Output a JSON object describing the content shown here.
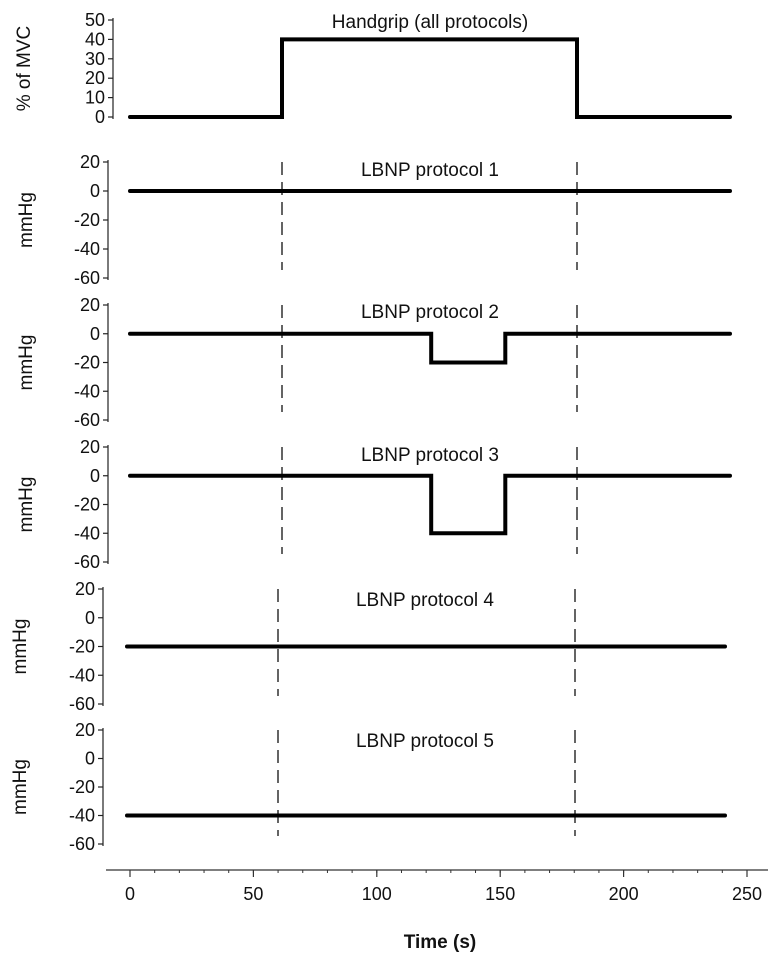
{
  "chart_data": {
    "type": "line",
    "x_axis": {
      "label": "Time (s)",
      "ticks": [
        0,
        50,
        100,
        150,
        200,
        250
      ],
      "range": [
        -5,
        255
      ]
    },
    "panels": [
      {
        "title": "Handgrip (all protocols)",
        "ylabel": "% of MVC",
        "yticks": [
          50,
          40,
          30,
          20,
          10,
          0
        ],
        "ylim": [
          0,
          50
        ],
        "series": {
          "x": [
            0,
            62,
            62,
            182,
            182,
            243
          ],
          "y": [
            0,
            0,
            40,
            40,
            0,
            0
          ]
        },
        "dashed_markers": []
      },
      {
        "title": "LBNP protocol 1",
        "ylabel": "mmHg",
        "yticks": [
          20,
          0,
          -20,
          -40,
          -60
        ],
        "ylim": [
          -60,
          20
        ],
        "series": {
          "x": [
            0,
            243
          ],
          "y": [
            0,
            0
          ]
        },
        "dashed_markers": [
          62,
          182
        ]
      },
      {
        "title": "LBNP protocol 2",
        "ylabel": "mmHg",
        "yticks": [
          20,
          0,
          -20,
          -40,
          -60
        ],
        "ylim": [
          -60,
          20
        ],
        "series": {
          "x": [
            0,
            122,
            122,
            152,
            152,
            243
          ],
          "y": [
            0,
            0,
            -20,
            -20,
            0,
            0
          ]
        },
        "dashed_markers": [
          62,
          182
        ]
      },
      {
        "title": "LBNP protocol 3",
        "ylabel": "mmHg",
        "yticks": [
          20,
          0,
          -20,
          -40,
          -60
        ],
        "ylim": [
          -60,
          20
        ],
        "series": {
          "x": [
            0,
            122,
            122,
            152,
            152,
            243
          ],
          "y": [
            0,
            0,
            -40,
            -40,
            0,
            0
          ]
        },
        "dashed_markers": [
          62,
          182
        ]
      },
      {
        "title": "LBNP protocol 4",
        "ylabel": "mmHg",
        "yticks": [
          20,
          0,
          -20,
          -40,
          -60
        ],
        "ylim": [
          -60,
          20
        ],
        "series": {
          "x": [
            0,
            243
          ],
          "y": [
            -20,
            -20
          ]
        },
        "dashed_markers": [
          62,
          182
        ]
      },
      {
        "title": "LBNP protocol 5",
        "ylabel": "mmHg",
        "yticks": [
          20,
          0,
          -20,
          -40,
          -60
        ],
        "ylim": [
          -60,
          20
        ],
        "series": {
          "x": [
            0,
            243
          ],
          "y": [
            -40,
            -40
          ]
        },
        "dashed_markers": [
          62,
          182
        ]
      }
    ]
  }
}
